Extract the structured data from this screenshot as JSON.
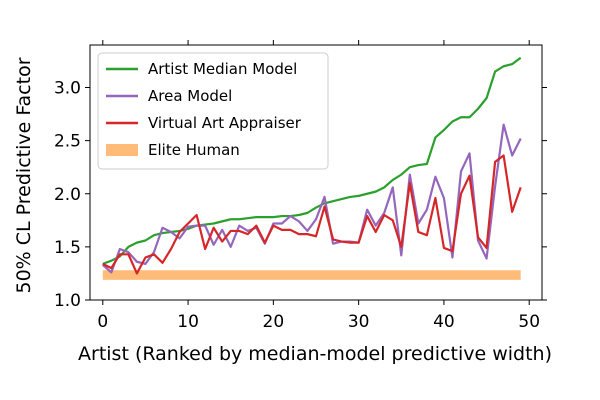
{
  "chart_data": {
    "type": "line",
    "xlabel": "Artist (Ranked by median-model predictive width)",
    "ylabel": "50% CL Predictive Factor",
    "xlim": [
      -1.5,
      51.5
    ],
    "ylim": [
      1.0,
      3.4
    ],
    "x_ticks": [
      "0",
      "10",
      "20",
      "30",
      "40",
      "50"
    ],
    "y_ticks": [
      "1.0",
      "1.5",
      "2.0",
      "2.5",
      "3.0"
    ],
    "grid": false,
    "legend_position": "upper-left",
    "x": [
      0,
      1,
      2,
      3,
      4,
      5,
      6,
      7,
      8,
      9,
      10,
      11,
      12,
      13,
      14,
      15,
      16,
      17,
      18,
      19,
      20,
      21,
      22,
      23,
      24,
      25,
      26,
      27,
      28,
      29,
      30,
      31,
      32,
      33,
      34,
      35,
      36,
      37,
      38,
      39,
      40,
      41,
      42,
      43,
      44,
      45,
      46,
      47,
      48,
      49
    ],
    "series": [
      {
        "name": "Artist Median Model",
        "color": "#2ca02c",
        "values": [
          1.34,
          1.37,
          1.41,
          1.5,
          1.54,
          1.56,
          1.61,
          1.63,
          1.64,
          1.65,
          1.67,
          1.7,
          1.71,
          1.72,
          1.74,
          1.76,
          1.76,
          1.77,
          1.78,
          1.78,
          1.78,
          1.79,
          1.79,
          1.8,
          1.82,
          1.87,
          1.91,
          1.93,
          1.95,
          1.97,
          1.98,
          2.0,
          2.02,
          2.06,
          2.13,
          2.18,
          2.25,
          2.27,
          2.28,
          2.53,
          2.6,
          2.68,
          2.72,
          2.72,
          2.8,
          2.9,
          3.15,
          3.2,
          3.22,
          3.28
        ]
      },
      {
        "name": "Area Model",
        "color": "#9467bd",
        "values": [
          1.33,
          1.26,
          1.48,
          1.45,
          1.36,
          1.34,
          1.45,
          1.68,
          1.64,
          1.58,
          1.69,
          1.7,
          1.7,
          1.52,
          1.66,
          1.5,
          1.7,
          1.65,
          1.68,
          1.53,
          1.72,
          1.72,
          1.79,
          1.74,
          1.65,
          1.76,
          1.97,
          1.53,
          1.55,
          1.55,
          1.54,
          1.85,
          1.7,
          1.82,
          2.06,
          1.42,
          2.18,
          1.72,
          1.85,
          2.16,
          1.96,
          1.4,
          2.21,
          2.38,
          1.56,
          1.39,
          2.07,
          2.65,
          2.36,
          2.52
        ]
      },
      {
        "name": "Virtual Art Appraiser",
        "color": "#d62728",
        "values": [
          1.34,
          1.3,
          1.43,
          1.43,
          1.25,
          1.4,
          1.43,
          1.35,
          1.48,
          1.64,
          1.72,
          1.8,
          1.48,
          1.68,
          1.55,
          1.65,
          1.65,
          1.62,
          1.7,
          1.54,
          1.7,
          1.66,
          1.66,
          1.62,
          1.62,
          1.6,
          1.88,
          1.57,
          1.55,
          1.54,
          1.54,
          1.79,
          1.64,
          1.8,
          1.75,
          1.5,
          2.1,
          1.64,
          1.61,
          1.96,
          1.49,
          1.46,
          2.0,
          2.17,
          1.59,
          1.49,
          2.3,
          2.36,
          1.83,
          2.06
        ]
      }
    ],
    "band": {
      "name": "Elite Human",
      "color": "#ffbb78",
      "x_range": [
        0,
        49
      ],
      "y_range": [
        1.19,
        1.28
      ]
    }
  }
}
